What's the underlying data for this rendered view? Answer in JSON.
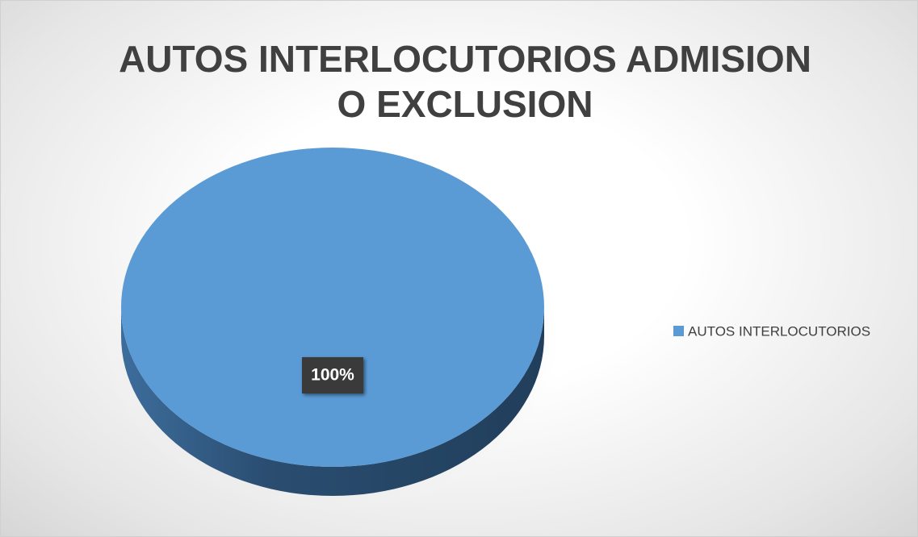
{
  "chart_data": {
    "type": "pie",
    "title": "AUTOS INTERLOCUTORIOS ADMISION O EXCLUSION",
    "categories": [
      "AUTOS INTERLOCUTORIOS"
    ],
    "values": [
      100
    ],
    "value_labels": [
      "100%"
    ],
    "colors": [
      "#5b9bd5"
    ],
    "legend": "right"
  }
}
